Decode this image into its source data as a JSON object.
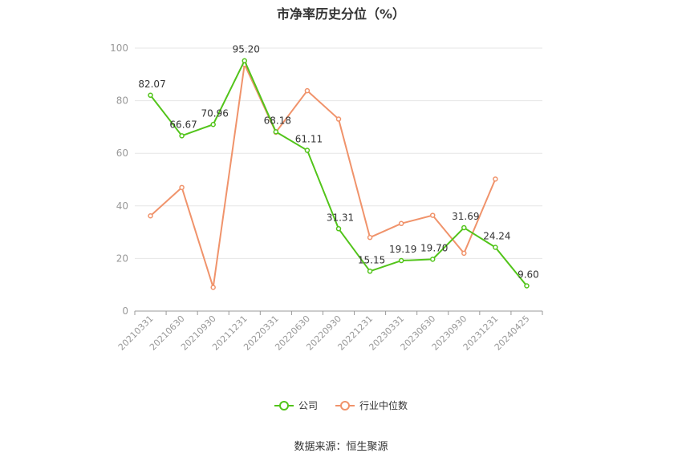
{
  "chart_data": {
    "type": "line",
    "title": "市净率历史分位（%）",
    "categories": [
      "20210331",
      "20210630",
      "20210930",
      "20211231",
      "20220331",
      "20220630",
      "20220930",
      "20221231",
      "20230331",
      "20230630",
      "20230930",
      "20231231",
      "20240425"
    ],
    "ylim": [
      0,
      100
    ],
    "yticks": [
      0,
      20,
      40,
      60,
      80,
      100
    ],
    "grid": true,
    "legend_position": "bottom",
    "series": [
      {
        "name": "公司",
        "color": "#52c41a",
        "show_labels": true,
        "values": [
          82.07,
          66.67,
          70.96,
          95.2,
          68.18,
          61.11,
          31.31,
          15.15,
          19.19,
          19.7,
          31.69,
          24.24,
          9.6
        ]
      },
      {
        "name": "行业中位数",
        "color": "#f0936b",
        "show_labels": false,
        "values": [
          36.2,
          47.0,
          9.0,
          93.8,
          68.0,
          83.8,
          73.0,
          28.0,
          33.3,
          36.4,
          22.0,
          50.2,
          null
        ]
      }
    ]
  },
  "source": "数据来源：恒生聚源"
}
